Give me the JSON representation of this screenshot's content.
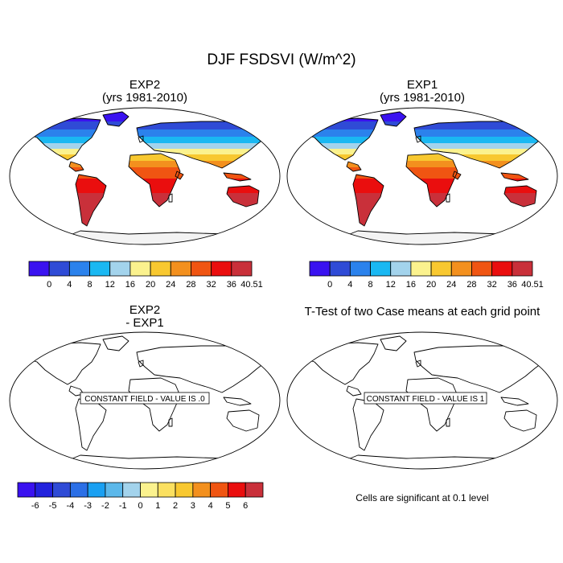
{
  "figure": {
    "title": "DJF FSDSVI (W/m^2)"
  },
  "panels": {
    "exp2": {
      "title_line1": "EXP2",
      "title_line2": "(yrs 1981-2010)"
    },
    "exp1": {
      "title_line1": "EXP1",
      "title_line2": "(yrs 1981-2010)"
    },
    "diff": {
      "title_line1": "EXP2",
      "title_line2": "- EXP1",
      "constant_label": "CONSTANT FIELD - VALUE IS .0"
    },
    "ttest": {
      "title_line1": "T-Test of two Case means at each grid point",
      "constant_label": "CONSTANT FIELD - VALUE IS 1",
      "note": "Cells are significant at 0.1 level"
    }
  },
  "colorbars": {
    "main": {
      "labels": [
        "0",
        "4",
        "8",
        "12",
        "16",
        "20",
        "24",
        "28",
        "32",
        "36",
        "40.51"
      ],
      "colors": [
        "#3a12f0",
        "#2f4bd6",
        "#2b82ec",
        "#1ab8f2",
        "#a3d3ec",
        "#fbf28e",
        "#f8c830",
        "#f3901e",
        "#f05512",
        "#ea0e0e",
        "#c9303a"
      ]
    },
    "diff": {
      "labels": [
        "-6",
        "-5",
        "-4",
        "-3",
        "-2",
        "-1",
        "0",
        "1",
        "2",
        "3",
        "4",
        "5",
        "6"
      ],
      "colors": [
        "#3a12f0",
        "#2222dd",
        "#2f4bd6",
        "#2b6fe6",
        "#1aa0f2",
        "#5cb8ea",
        "#a3d3ec",
        "#fbf28e",
        "#fbe060",
        "#f8c830",
        "#f3901e",
        "#f05512",
        "#ea0e0e",
        "#c9303a"
      ]
    }
  }
}
